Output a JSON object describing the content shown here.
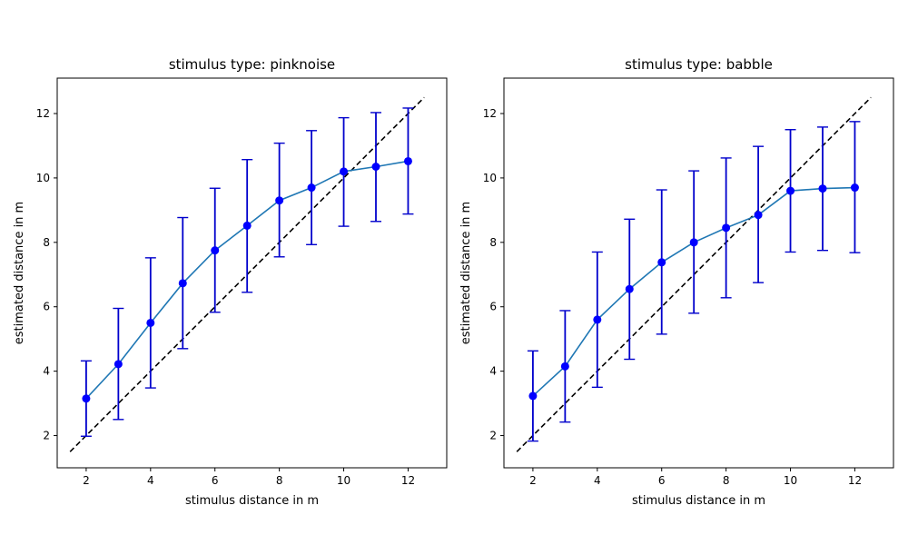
{
  "colors": {
    "line": "#1f77b4",
    "marker": "#0000ff",
    "errorbar": "#0000cc",
    "reference": "#000000"
  },
  "chart_data": [
    {
      "type": "line",
      "title": "stimulus type: pinknoise",
      "xlabel": "stimulus distance in m",
      "ylabel": "estimated distance in m",
      "xlim": [
        1.1,
        13.2
      ],
      "ylim": [
        1.0,
        13.1
      ],
      "xticks": [
        "2",
        "4",
        "6",
        "8",
        "10",
        "12"
      ],
      "yticks": [
        "2",
        "4",
        "6",
        "8",
        "10",
        "12"
      ],
      "reference_line": {
        "style": "dashed",
        "x": [
          1.5,
          12.5
        ],
        "y": [
          1.5,
          12.5
        ]
      },
      "series": [
        {
          "x": [
            2,
            3,
            4,
            5,
            6,
            7,
            8,
            9,
            10,
            11,
            12
          ],
          "y": [
            3.15,
            4.22,
            5.5,
            6.73,
            7.75,
            8.52,
            9.3,
            9.7,
            10.2,
            10.35,
            10.52
          ],
          "err_low": [
            1.98,
            2.5,
            3.48,
            4.7,
            5.83,
            6.45,
            7.55,
            7.93,
            8.5,
            8.65,
            8.88
          ],
          "err_high": [
            4.32,
            5.95,
            7.52,
            8.77,
            9.68,
            10.57,
            11.08,
            11.47,
            11.87,
            12.03,
            12.17
          ]
        }
      ]
    },
    {
      "type": "line",
      "title": "stimulus type: babble",
      "xlabel": "stimulus distance in m",
      "ylabel": "estimated distance in m",
      "xlim": [
        1.1,
        13.2
      ],
      "ylim": [
        1.0,
        13.1
      ],
      "xticks": [
        "2",
        "4",
        "6",
        "8",
        "10",
        "12"
      ],
      "yticks": [
        "2",
        "4",
        "6",
        "8",
        "10",
        "12"
      ],
      "reference_line": {
        "style": "dashed",
        "x": [
          1.5,
          12.5
        ],
        "y": [
          1.5,
          12.5
        ]
      },
      "series": [
        {
          "x": [
            2,
            3,
            4,
            5,
            6,
            7,
            8,
            9,
            10,
            11,
            12
          ],
          "y": [
            3.23,
            4.15,
            5.6,
            6.55,
            7.38,
            8.0,
            8.45,
            8.85,
            9.6,
            9.67,
            9.7
          ],
          "err_low": [
            1.83,
            2.42,
            3.5,
            4.37,
            5.15,
            5.8,
            6.28,
            6.75,
            7.7,
            7.75,
            7.68
          ],
          "err_high": [
            4.63,
            5.88,
            7.7,
            8.72,
            9.63,
            10.22,
            10.62,
            10.98,
            11.5,
            11.58,
            11.75
          ]
        }
      ]
    }
  ]
}
